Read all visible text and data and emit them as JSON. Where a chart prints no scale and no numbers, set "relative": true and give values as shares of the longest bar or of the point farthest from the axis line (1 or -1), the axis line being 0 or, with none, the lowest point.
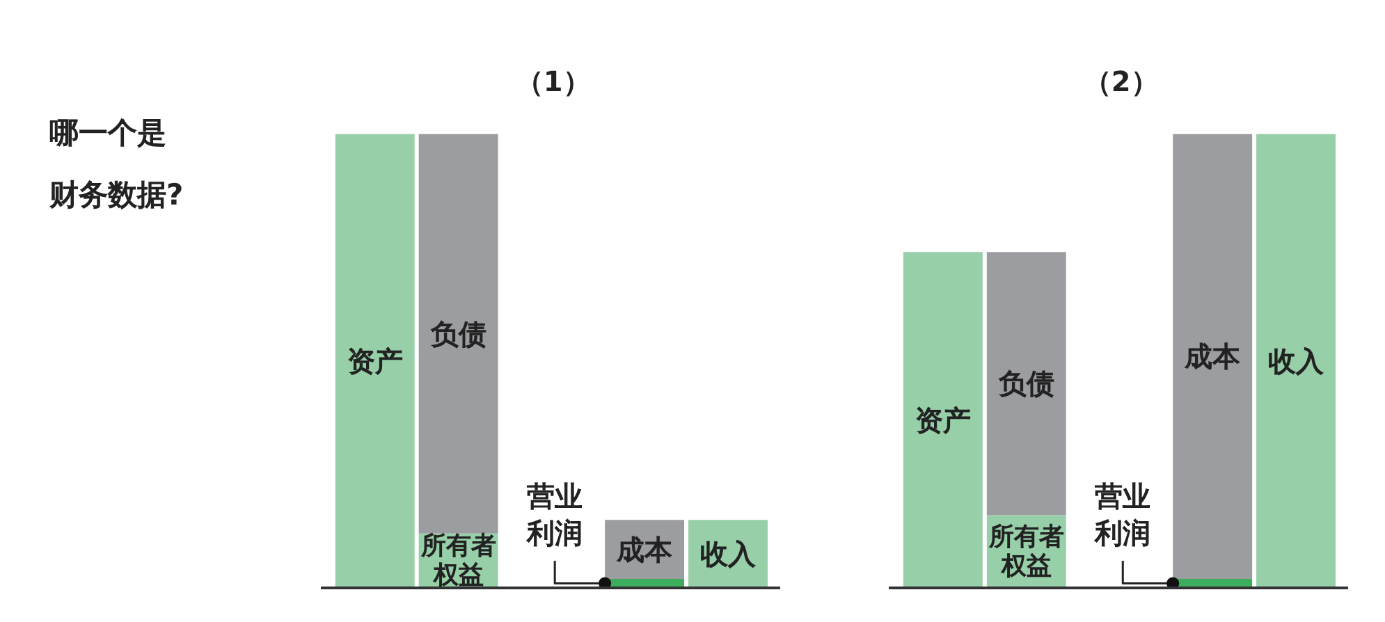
{
  "chart_data": [
    {
      "type": "bar",
      "title": "（1）",
      "annotations": [
        "哪一个是财务数据?"
      ],
      "relative": true,
      "stacked": true,
      "categories": [
        null,
        null,
        null,
        null
      ],
      "series": [
        {
          "name": "资产",
          "color": "#97cfa8",
          "values": [
            1,
            null,
            null,
            null
          ]
        },
        {
          "name": "所有者权益",
          "color": "#97cfa8",
          "values": [
            null,
            0.12,
            null,
            null
          ]
        },
        {
          "name": "负债",
          "color": "#9c9da1",
          "values": [
            null,
            0.88,
            null,
            null
          ]
        },
        {
          "name": "营业利润",
          "color": "#3dae5d",
          "values": [
            null,
            null,
            0.02,
            null
          ]
        },
        {
          "name": "成本",
          "color": "#9c9da1",
          "values": [
            null,
            null,
            0.13,
            null
          ]
        },
        {
          "name": "收入",
          "color": "#97cfa8",
          "values": [
            null,
            null,
            null,
            0.15
          ]
        }
      ]
    },
    {
      "type": "bar",
      "title": "（2）",
      "relative": true,
      "stacked": true,
      "categories": [
        null,
        null,
        null,
        null
      ],
      "series": [
        {
          "name": "资产",
          "color": "#97cfa8",
          "values": [
            0.74,
            null,
            null,
            null
          ]
        },
        {
          "name": "所有者权益",
          "color": "#97cfa8",
          "values": [
            null,
            0.16,
            null,
            null
          ]
        },
        {
          "name": "负债",
          "color": "#9c9da1",
          "values": [
            null,
            0.58,
            null,
            null
          ]
        },
        {
          "name": "营业利润",
          "color": "#3dae5d",
          "values": [
            null,
            null,
            0.02,
            null
          ]
        },
        {
          "name": "成本",
          "color": "#9c9da1",
          "values": [
            null,
            null,
            0.98,
            null
          ]
        },
        {
          "name": "收入",
          "color": "#97cfa8",
          "values": [
            null,
            null,
            null,
            1
          ]
        }
      ]
    }
  ]
}
